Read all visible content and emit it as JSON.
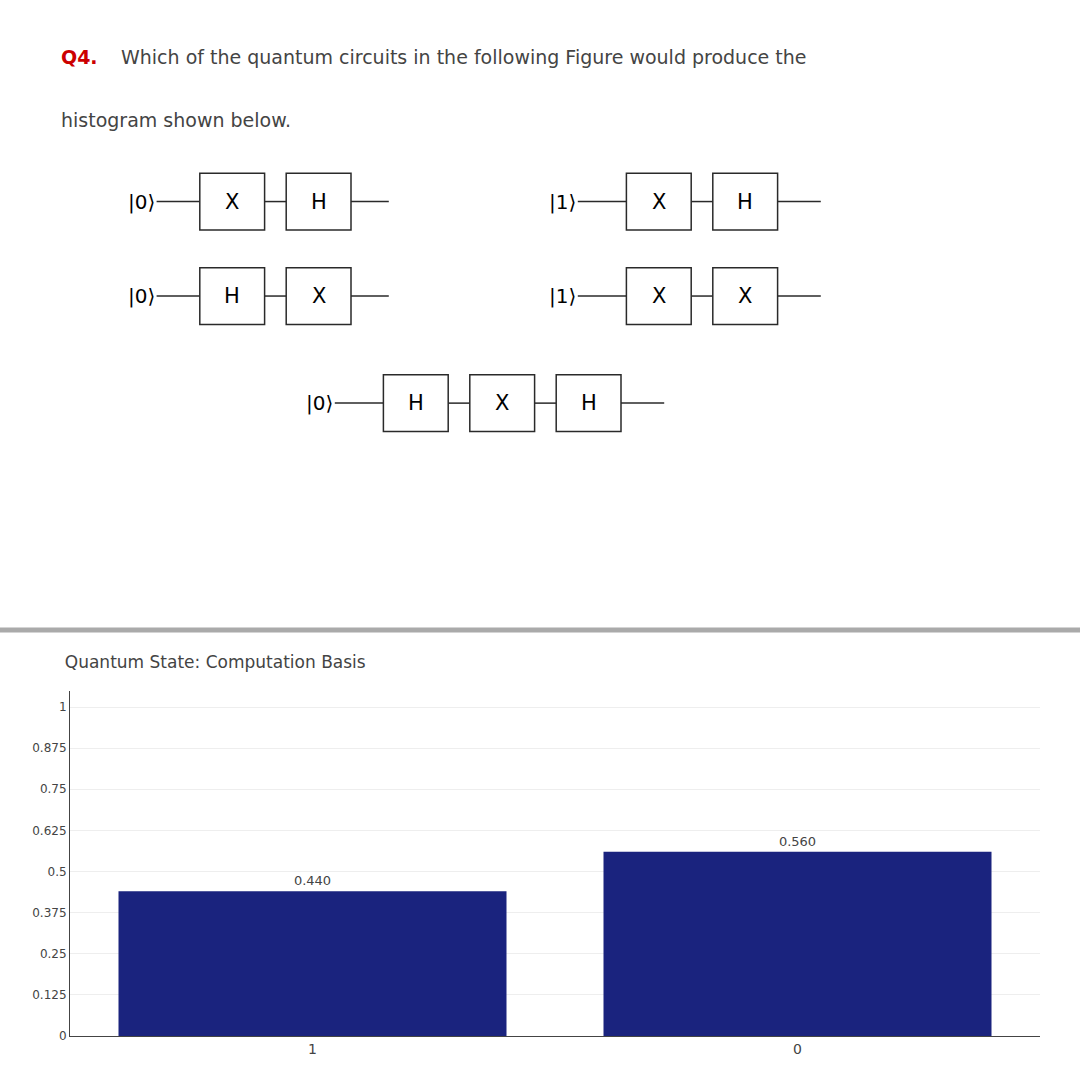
{
  "chart_data": {
    "type": "bar",
    "title": "Quantum State: Computation Basis",
    "categories": [
      "1",
      "0"
    ],
    "values": [
      0.44,
      0.56
    ],
    "value_labels": [
      "0.440",
      "0.560"
    ],
    "data_labels": true,
    "color": "#1a237e",
    "ylim": [
      0,
      1.05
    ],
    "yticks": [
      0,
      0.125,
      0.25,
      0.375,
      0.5,
      0.625,
      0.75,
      0.875,
      1
    ],
    "grid": true,
    "annotations": [
      {
        "text": "Q4.",
        "color": "#cc0000"
      },
      {
        "text": "Which of the quantum circuits in the following Figure would produce the"
      },
      {
        "text": "histogram shown below."
      },
      {
        "ket": "|0⟩",
        "gates": [
          "X",
          "H"
        ]
      },
      {
        "ket": "|0⟩",
        "gates": [
          "H",
          "X"
        ]
      },
      {
        "ket": "|1⟩",
        "gates": [
          "X",
          "H"
        ]
      },
      {
        "ket": "|1⟩",
        "gates": [
          "X",
          "X"
        ]
      },
      {
        "ket": "|0⟩",
        "gates": [
          "H",
          "X",
          "H"
        ]
      }
    ]
  }
}
